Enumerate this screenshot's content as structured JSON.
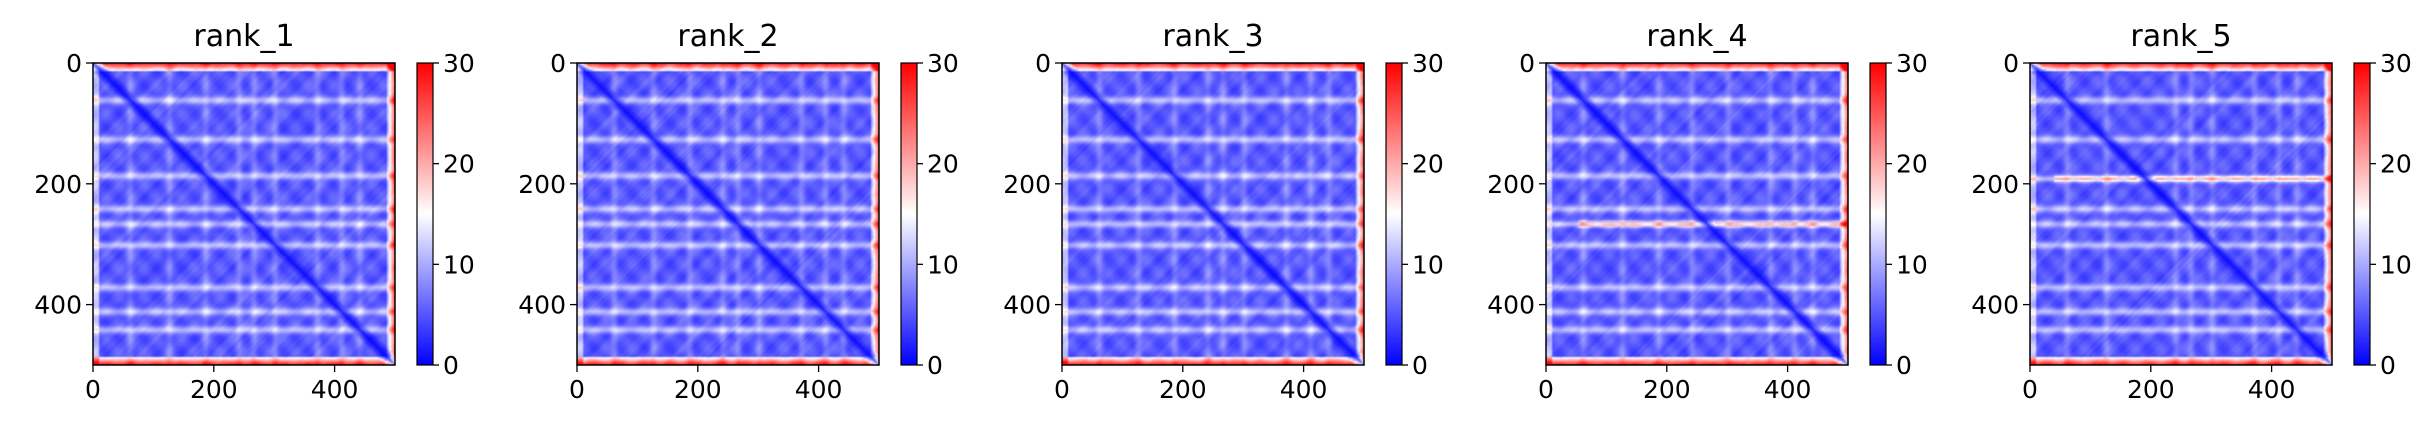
{
  "chart_data": [
    {
      "type": "heatmap",
      "title": "rank_1",
      "xlim": [
        0,
        500
      ],
      "ylim": [
        500,
        0
      ],
      "x_ticks": [
        "0",
        "200",
        "400"
      ],
      "y_ticks": [
        "0",
        "200",
        "400"
      ],
      "colorbar": {
        "range": [
          0,
          30
        ],
        "ticks": [
          "0",
          "10",
          "20",
          "30"
        ],
        "colors": [
          "#0000ff",
          "#ffffff",
          "#ff0000"
        ]
      },
      "size": 500,
      "bands": [
        60,
        125,
        185,
        240,
        265,
        300,
        370,
        410,
        440
      ],
      "strong_bands": []
    },
    {
      "type": "heatmap",
      "title": "rank_2",
      "xlim": [
        0,
        500
      ],
      "ylim": [
        500,
        0
      ],
      "x_ticks": [
        "0",
        "200",
        "400"
      ],
      "y_ticks": [
        "0",
        "200",
        "400"
      ],
      "colorbar": {
        "range": [
          0,
          30
        ],
        "ticks": [
          "0",
          "10",
          "20",
          "30"
        ],
        "colors": [
          "#0000ff",
          "#ffffff",
          "#ff0000"
        ]
      },
      "size": 500,
      "bands": [
        60,
        125,
        185,
        240,
        265,
        300,
        370,
        410,
        440
      ],
      "strong_bands": []
    },
    {
      "type": "heatmap",
      "title": "rank_3",
      "xlim": [
        0,
        500
      ],
      "ylim": [
        500,
        0
      ],
      "x_ticks": [
        "0",
        "200",
        "400"
      ],
      "y_ticks": [
        "0",
        "200",
        "400"
      ],
      "colorbar": {
        "range": [
          0,
          30
        ],
        "ticks": [
          "0",
          "10",
          "20",
          "30"
        ],
        "colors": [
          "#0000ff",
          "#ffffff",
          "#ff0000"
        ]
      },
      "size": 500,
      "bands": [
        60,
        125,
        185,
        240,
        265,
        300,
        370,
        410,
        440
      ],
      "strong_bands": []
    },
    {
      "type": "heatmap",
      "title": "rank_4",
      "xlim": [
        0,
        500
      ],
      "ylim": [
        500,
        0
      ],
      "x_ticks": [
        "0",
        "200",
        "400"
      ],
      "y_ticks": [
        "0",
        "200",
        "400"
      ],
      "colorbar": {
        "range": [
          0,
          30
        ],
        "ticks": [
          "0",
          "10",
          "20",
          "30"
        ],
        "colors": [
          "#0000ff",
          "#ffffff",
          "#ff0000"
        ]
      },
      "size": 500,
      "bands": [
        60,
        125,
        185,
        240,
        300,
        370,
        410,
        440
      ],
      "strong_bands": [
        265
      ]
    },
    {
      "type": "heatmap",
      "title": "rank_5",
      "xlim": [
        0,
        500
      ],
      "ylim": [
        500,
        0
      ],
      "x_ticks": [
        "0",
        "200",
        "400"
      ],
      "y_ticks": [
        "0",
        "200",
        "400"
      ],
      "colorbar": {
        "range": [
          0,
          30
        ],
        "ticks": [
          "0",
          "10",
          "20",
          "30"
        ],
        "colors": [
          "#0000ff",
          "#ffffff",
          "#ff0000"
        ]
      },
      "size": 500,
      "bands": [
        60,
        125,
        240,
        265,
        300,
        370,
        410,
        440
      ],
      "strong_bands": [
        190
      ]
    }
  ]
}
